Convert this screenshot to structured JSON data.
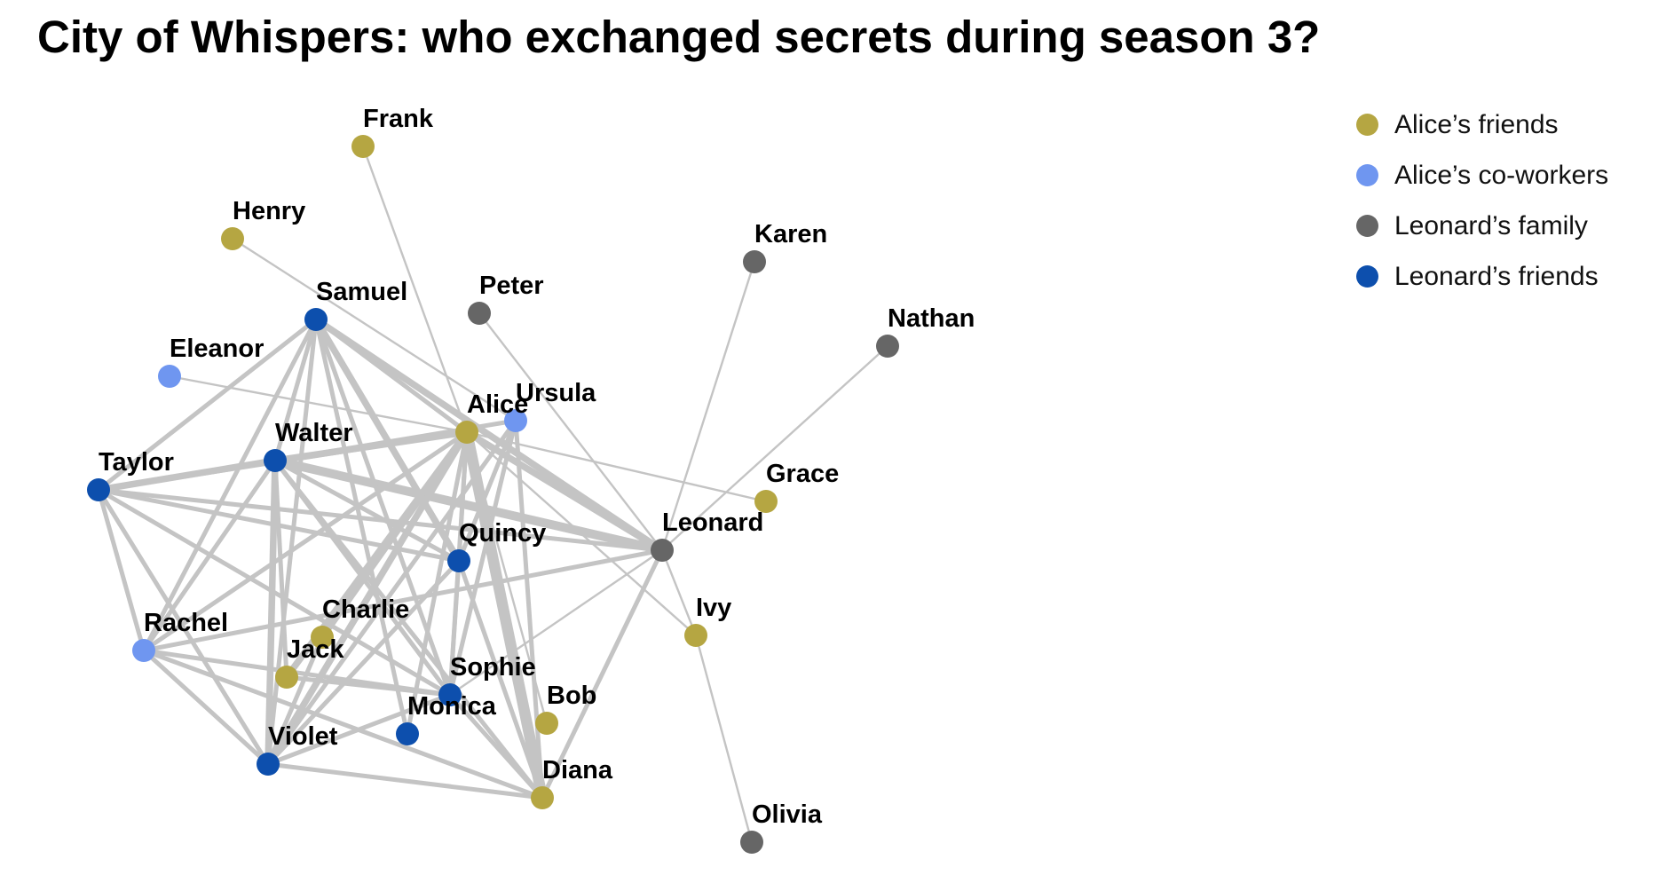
{
  "title": "City of Whispers: who exchanged secrets during season 3?",
  "groups": [
    {
      "id": "alice_friends",
      "label": "Alice’s friends",
      "color": "#b5a642"
    },
    {
      "id": "alice_coworkers",
      "label": "Alice’s co-workers",
      "color": "#6f96f0"
    },
    {
      "id": "leonard_family",
      "label": "Leonard’s family",
      "color": "#666666"
    },
    {
      "id": "leonard_friends",
      "label": "Leonard’s friends",
      "color": "#0d4fad"
    }
  ],
  "edge_color": "#c4c4c4",
  "nodes": [
    {
      "id": "Frank",
      "label": "Frank",
      "group": "alice_friends"
    },
    {
      "id": "Henry",
      "label": "Henry",
      "group": "alice_friends"
    },
    {
      "id": "Karen",
      "label": "Karen",
      "group": "leonard_family"
    },
    {
      "id": "Peter",
      "label": "Peter",
      "group": "leonard_family"
    },
    {
      "id": "Samuel",
      "label": "Samuel",
      "group": "leonard_friends"
    },
    {
      "id": "Nathan",
      "label": "Nathan",
      "group": "leonard_family"
    },
    {
      "id": "Eleanor",
      "label": "Eleanor",
      "group": "alice_coworkers"
    },
    {
      "id": "Ursula",
      "label": "Ursula",
      "group": "alice_coworkers"
    },
    {
      "id": "Alice",
      "label": "Alice",
      "group": "alice_friends"
    },
    {
      "id": "Walter",
      "label": "Walter",
      "group": "leonard_friends"
    },
    {
      "id": "Taylor",
      "label": "Taylor",
      "group": "leonard_friends"
    },
    {
      "id": "Grace",
      "label": "Grace",
      "group": "alice_friends"
    },
    {
      "id": "Leonard",
      "label": "Leonard",
      "group": "leonard_family"
    },
    {
      "id": "Quincy",
      "label": "Quincy",
      "group": "leonard_friends"
    },
    {
      "id": "Ivy",
      "label": "Ivy",
      "group": "alice_friends"
    },
    {
      "id": "Charlie",
      "label": "Charlie",
      "group": "alice_friends"
    },
    {
      "id": "Rachel",
      "label": "Rachel",
      "group": "alice_coworkers"
    },
    {
      "id": "Jack",
      "label": "Jack",
      "group": "alice_friends"
    },
    {
      "id": "Sophie",
      "label": "Sophie",
      "group": "leonard_friends"
    },
    {
      "id": "Bob",
      "label": "Bob",
      "group": "alice_friends"
    },
    {
      "id": "Monica",
      "label": "Monica",
      "group": "leonard_friends"
    },
    {
      "id": "Violet",
      "label": "Violet",
      "group": "leonard_friends"
    },
    {
      "id": "Diana",
      "label": "Diana",
      "group": "alice_friends"
    },
    {
      "id": "Olivia",
      "label": "Olivia",
      "group": "leonard_family"
    }
  ],
  "edges": [
    {
      "source": "Frank",
      "target": "Alice",
      "weight": 1
    },
    {
      "source": "Henry",
      "target": "Ursula",
      "weight": 1
    },
    {
      "source": "Eleanor",
      "target": "Alice",
      "weight": 1
    },
    {
      "source": "Alice",
      "target": "Grace",
      "weight": 1
    },
    {
      "source": "Peter",
      "target": "Leonard",
      "weight": 1
    },
    {
      "source": "Karen",
      "target": "Leonard",
      "weight": 1
    },
    {
      "source": "Nathan",
      "target": "Leonard",
      "weight": 1
    },
    {
      "source": "Leonard",
      "target": "Ivy",
      "weight": 1
    },
    {
      "source": "Ivy",
      "target": "Olivia",
      "weight": 1
    },
    {
      "source": "Alice",
      "target": "Ivy",
      "weight": 1
    },
    {
      "source": "Leonard",
      "target": "Sophie",
      "weight": 1
    },
    {
      "source": "Alice",
      "target": "Bob",
      "weight": 1
    },
    {
      "source": "Alice",
      "target": "Leonard",
      "weight": 3
    },
    {
      "source": "Walter",
      "target": "Leonard",
      "weight": 4
    },
    {
      "source": "Samuel",
      "target": "Leonard",
      "weight": 3
    },
    {
      "source": "Taylor",
      "target": "Leonard",
      "weight": 2
    },
    {
      "source": "Rachel",
      "target": "Leonard",
      "weight": 2
    },
    {
      "source": "Leonard",
      "target": "Diana",
      "weight": 2
    },
    {
      "source": "Samuel",
      "target": "Alice",
      "weight": 2
    },
    {
      "source": "Samuel",
      "target": "Taylor",
      "weight": 2
    },
    {
      "source": "Samuel",
      "target": "Rachel",
      "weight": 2
    },
    {
      "source": "Samuel",
      "target": "Walter",
      "weight": 2
    },
    {
      "source": "Samuel",
      "target": "Violet",
      "weight": 2
    },
    {
      "source": "Samuel",
      "target": "Quincy",
      "weight": 3
    },
    {
      "source": "Samuel",
      "target": "Sophie",
      "weight": 2
    },
    {
      "source": "Samuel",
      "target": "Monica",
      "weight": 2
    },
    {
      "source": "Walter",
      "target": "Alice",
      "weight": 3
    },
    {
      "source": "Walter",
      "target": "Ursula",
      "weight": 2
    },
    {
      "source": "Taylor",
      "target": "Walter",
      "weight": 3
    },
    {
      "source": "Taylor",
      "target": "Alice",
      "weight": 2
    },
    {
      "source": "Taylor",
      "target": "Rachel",
      "weight": 2
    },
    {
      "source": "Taylor",
      "target": "Violet",
      "weight": 2
    },
    {
      "source": "Taylor",
      "target": "Quincy",
      "weight": 2
    },
    {
      "source": "Taylor",
      "target": "Sophie",
      "weight": 2
    },
    {
      "source": "Walter",
      "target": "Rachel",
      "weight": 2
    },
    {
      "source": "Walter",
      "target": "Violet",
      "weight": 3
    },
    {
      "source": "Walter",
      "target": "Quincy",
      "weight": 2
    },
    {
      "source": "Walter",
      "target": "Sophie",
      "weight": 2
    },
    {
      "source": "Walter",
      "target": "Diana",
      "weight": 2
    },
    {
      "source": "Walter",
      "target": "Jack",
      "weight": 2
    },
    {
      "source": "Alice",
      "target": "Quincy",
      "weight": 2
    },
    {
      "source": "Alice",
      "target": "Rachel",
      "weight": 2
    },
    {
      "source": "Alice",
      "target": "Charlie",
      "weight": 3
    },
    {
      "source": "Alice",
      "target": "Jack",
      "weight": 3
    },
    {
      "source": "Alice",
      "target": "Violet",
      "weight": 3
    },
    {
      "source": "Alice",
      "target": "Diana",
      "weight": 5
    },
    {
      "source": "Alice",
      "target": "Sophie",
      "weight": 2
    },
    {
      "source": "Alice",
      "target": "Monica",
      "weight": 2
    },
    {
      "source": "Ursula",
      "target": "Violet",
      "weight": 2
    },
    {
      "source": "Ursula",
      "target": "Diana",
      "weight": 2
    },
    {
      "source": "Ursula",
      "target": "Quincy",
      "weight": 2
    },
    {
      "source": "Ursula",
      "target": "Sophie",
      "weight": 2
    },
    {
      "source": "Quincy",
      "target": "Violet",
      "weight": 2
    },
    {
      "source": "Quincy",
      "target": "Sophie",
      "weight": 2
    },
    {
      "source": "Quincy",
      "target": "Diana",
      "weight": 2
    },
    {
      "source": "Rachel",
      "target": "Violet",
      "weight": 2
    },
    {
      "source": "Rachel",
      "target": "Sophie",
      "weight": 2
    },
    {
      "source": "Rachel",
      "target": "Diana",
      "weight": 2
    },
    {
      "source": "Jack",
      "target": "Sophie",
      "weight": 2
    },
    {
      "source": "Charlie",
      "target": "Violet",
      "weight": 2
    },
    {
      "source": "Violet",
      "target": "Sophie",
      "weight": 2
    },
    {
      "source": "Violet",
      "target": "Diana",
      "weight": 2
    },
    {
      "source": "Sophie",
      "target": "Diana",
      "weight": 2
    }
  ]
}
